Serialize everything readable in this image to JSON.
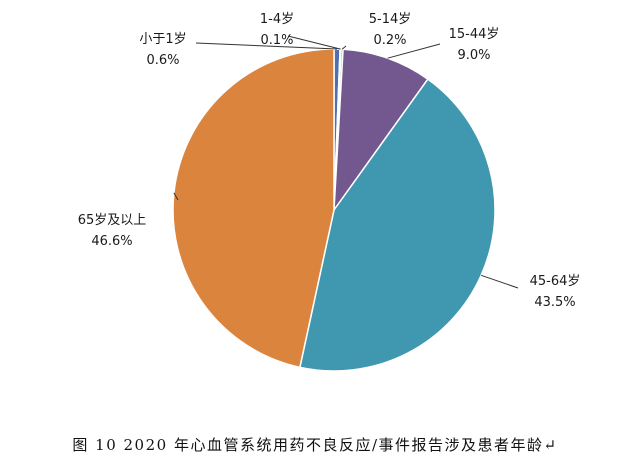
{
  "chart_data": {
    "type": "pie",
    "start_angle_deg": 0,
    "direction": "clockwise",
    "slices": [
      {
        "name": "小于1岁",
        "value": 0.6,
        "label": "0.6%",
        "color": "#4f6fae"
      },
      {
        "name": "1-4岁",
        "value": 0.1,
        "label": "0.1%",
        "color": "#b0413e"
      },
      {
        "name": "5-14岁",
        "value": 0.2,
        "label": "0.2%",
        "color": "#8aaa3f"
      },
      {
        "name": "15-44岁",
        "value": 9.0,
        "label": "9.0%",
        "color": "#73588f"
      },
      {
        "name": "45-64岁",
        "value": 43.5,
        "label": "43.5%",
        "color": "#4097b0"
      },
      {
        "name": "65岁及以上",
        "value": 46.6,
        "label": "46.6%",
        "color": "#db843d"
      }
    ]
  },
  "caption": "图 10  2020 年心血管系统用药不良反应/事件报告涉及患者年龄",
  "caption_mark": "↵"
}
